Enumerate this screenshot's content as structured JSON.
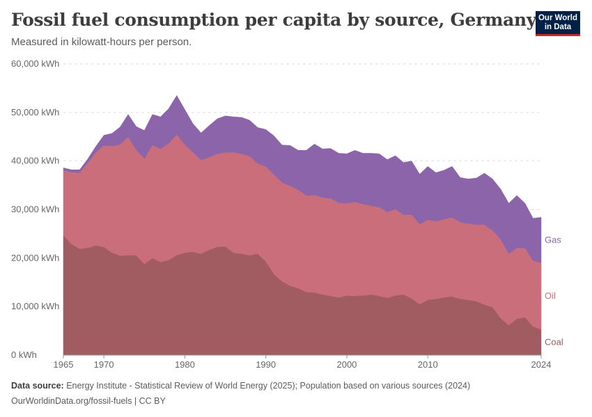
{
  "header": {
    "title": "Fossil fuel consumption per capita by source, Germany",
    "subtitle": "Measured in kilowatt-hours per person."
  },
  "logo": {
    "line1": "Our World",
    "line2": "in Data"
  },
  "footer": {
    "source_label": "Data source:",
    "source_text": "Energy Institute - Statistical Review of World Energy (2025); Population based on various sources (2024)",
    "url_text": "OurWorldinData.org/fossil-fuels | CC BY"
  },
  "chart_data": {
    "type": "area",
    "stacked": true,
    "ylim": [
      0,
      60000
    ],
    "xlim": [
      1965,
      2024
    ],
    "y_ticks": [
      0,
      10000,
      20000,
      30000,
      40000,
      50000,
      60000
    ],
    "y_tick_labels": [
      "0 kWh",
      "10,000 kWh",
      "20,000 kWh",
      "30,000 kWh",
      "40,000 kWh",
      "50,000 kWh",
      "60,000 kWh"
    ],
    "x_ticks": [
      1965,
      1970,
      1980,
      1990,
      2000,
      2010,
      2024
    ],
    "grid": "horizontal-dashed",
    "x": [
      1965,
      1966,
      1967,
      1968,
      1969,
      1970,
      1971,
      1972,
      1973,
      1974,
      1975,
      1976,
      1977,
      1978,
      1979,
      1980,
      1981,
      1982,
      1983,
      1984,
      1985,
      1986,
      1987,
      1988,
      1989,
      1990,
      1991,
      1992,
      1993,
      1994,
      1995,
      1996,
      1997,
      1998,
      1999,
      2000,
      2001,
      2002,
      2003,
      2004,
      2005,
      2006,
      2007,
      2008,
      2009,
      2010,
      2011,
      2012,
      2013,
      2014,
      2015,
      2016,
      2017,
      2018,
      2019,
      2020,
      2021,
      2022,
      2023,
      2024
    ],
    "series": [
      {
        "name": "Coal",
        "color": "#a05c60",
        "values": [
          24700,
          22900,
          21900,
          22100,
          22600,
          22300,
          21100,
          20500,
          20600,
          20600,
          18800,
          20000,
          19200,
          19600,
          20600,
          21100,
          21300,
          20900,
          21700,
          22300,
          22400,
          21100,
          20900,
          20600,
          20900,
          19300,
          16700,
          15200,
          14300,
          13800,
          13000,
          12900,
          12500,
          12200,
          11900,
          12300,
          12200,
          12300,
          12500,
          12200,
          11800,
          12300,
          12500,
          11700,
          10500,
          11400,
          11600,
          11900,
          12100,
          11600,
          11400,
          11100,
          10400,
          9900,
          7600,
          6200,
          7500,
          7800,
          5900,
          5300
        ]
      },
      {
        "name": "Oil",
        "color": "#ca6e7c",
        "values": [
          13400,
          14800,
          15700,
          17500,
          19200,
          20900,
          22000,
          22900,
          24400,
          21700,
          21700,
          23300,
          23300,
          24000,
          24900,
          22300,
          20500,
          19300,
          19100,
          19200,
          19400,
          20700,
          20600,
          20400,
          18600,
          19600,
          20500,
          20400,
          20600,
          20300,
          19900,
          20100,
          20000,
          20100,
          19500,
          19000,
          19400,
          18800,
          18300,
          18300,
          17700,
          17800,
          16400,
          17300,
          16500,
          16500,
          16000,
          16100,
          16300,
          15800,
          15700,
          15800,
          16500,
          15800,
          16300,
          14700,
          14600,
          14300,
          13600,
          13700
        ]
      },
      {
        "name": "Gas",
        "color": "#8c64a9",
        "values": [
          500,
          500,
          600,
          800,
          1200,
          2100,
          2600,
          3600,
          4600,
          4800,
          5800,
          6300,
          6600,
          7200,
          8000,
          7200,
          5900,
          5600,
          6500,
          7200,
          7500,
          7300,
          7500,
          7400,
          7400,
          7600,
          8000,
          7700,
          8300,
          8100,
          9300,
          10500,
          10000,
          10300,
          10200,
          10200,
          10600,
          10500,
          10800,
          11000,
          10800,
          11000,
          10800,
          11000,
          10300,
          11000,
          10000,
          10100,
          10500,
          9200,
          9200,
          9600,
          10600,
          10600,
          10300,
          10400,
          10800,
          9200,
          8700,
          9400
        ]
      }
    ]
  }
}
